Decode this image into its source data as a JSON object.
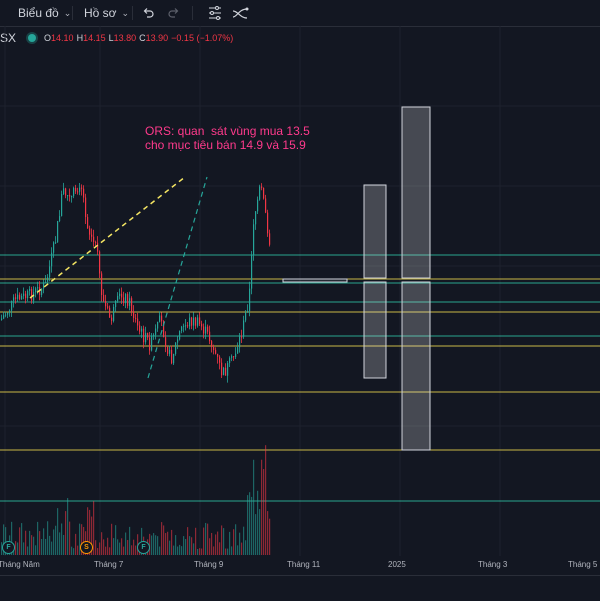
{
  "toolbar": {
    "chart_menu": "Biểu đồ",
    "profile_menu": "Hồ sơ"
  },
  "legend": {
    "symbol": "SX",
    "o_label": "O",
    "o_value": "14.10",
    "h_label": "H",
    "h_value": "14.15",
    "l_label": "L",
    "l_value": "13.80",
    "c_label": "C",
    "c_value": "13.90",
    "change": "−0.15 (−1.07%)"
  },
  "annotation": {
    "text": "ORS: quan  sát vùng mua 13.5\ncho mục tiêu bán 14.9 và 15.9"
  },
  "time_axis": {
    "labels": [
      "Tháng Năm",
      "Tháng 7",
      "Tháng 9",
      "Tháng 11",
      "2025",
      "Tháng 3",
      "Tháng 5"
    ]
  },
  "markers": [
    {
      "letter": "F",
      "kind": "f"
    },
    {
      "letter": "S",
      "kind": "s"
    },
    {
      "letter": "F",
      "kind": "f"
    }
  ],
  "colors": {
    "up": "#26a69a",
    "down": "#f23645",
    "annotation": "#ff3a8c",
    "level_yellow": "#e8d44d",
    "level_teal": "#2fbfa3"
  },
  "icons": [
    "undo-icon",
    "redo-icon",
    "indicator-template-icon",
    "alert-icon",
    "compare-icon",
    "chevron-down-icon"
  ]
}
